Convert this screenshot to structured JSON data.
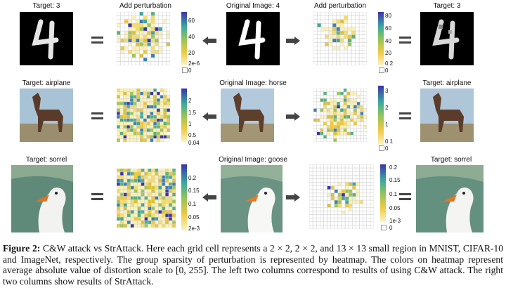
{
  "figure": {
    "rows": [
      {
        "name": "mnist",
        "left_target": "Target: 3",
        "left_heatmap_title": "Add perturbation",
        "original": "Original Image: 4",
        "right_heatmap_title": "Add perturbation",
        "right_target": "Target: 3",
        "left_ticks": [
          "60",
          "40",
          "20",
          "2e-6",
          "0"
        ],
        "right_ticks": [
          "80",
          "60",
          "40",
          "20",
          "0.2",
          "0"
        ]
      },
      {
        "name": "cifar",
        "left_target": "Target: airplane",
        "original": "Original Image: horse",
        "right_target": "Target: airplane",
        "left_ticks": [
          "2",
          "1.5",
          "1",
          "0.5",
          "0.04"
        ],
        "right_ticks": [
          "3",
          "2",
          "1",
          "0.1",
          "0"
        ]
      },
      {
        "name": "imagenet",
        "left_target": "Target: sorrel",
        "original": "Original Image: goose",
        "right_target": "Target: sorrel",
        "left_ticks": [
          "0.2",
          "0.15",
          "0.1",
          "0.05",
          "2e-3"
        ],
        "right_ticks": [
          "0.2",
          "0.15",
          "0.1",
          "0.05",
          "1e-3",
          "0"
        ]
      }
    ],
    "colors": {
      "colormap_low": "#f6e08a",
      "colormap_mid": "#4fb38c",
      "colormap_high": "#3b3fb0",
      "symbol": "#444444"
    }
  },
  "caption": {
    "label": "Figure 2:",
    "text": " C&W attack vs StrAttack. Here each grid cell represents a 2 × 2, 2 × 2, and 13 × 13 small region in MNIST, CIFAR-10 and ImageNet, respectively. The group sparsity of perturbation is represented by heatmap. The colors on heatmap represent average absolute value of distortion scale to [0, 255]. The left two columns correspond to results of using C&W attack. The right two columns show results of StrAttack."
  }
}
